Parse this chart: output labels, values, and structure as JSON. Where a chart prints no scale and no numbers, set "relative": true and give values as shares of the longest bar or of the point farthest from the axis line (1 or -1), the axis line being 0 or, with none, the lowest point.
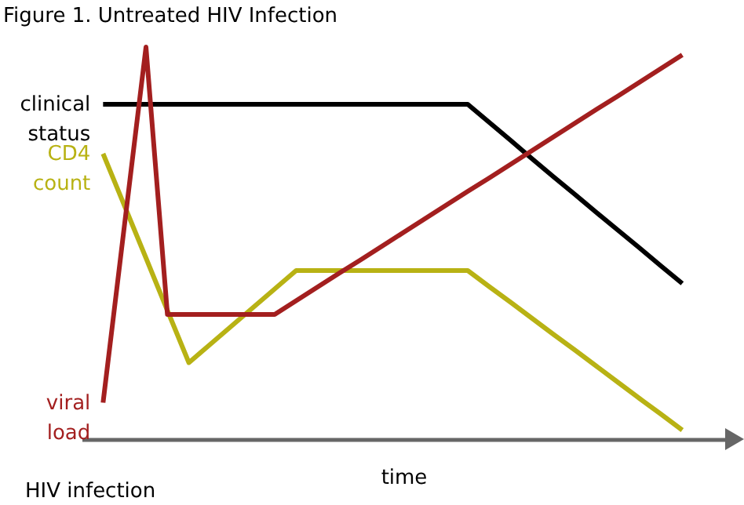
{
  "chart_data": {
    "type": "line",
    "title": "Figure 1. Untreated HIV Infection",
    "xlabel": "time",
    "annotations": [
      "HIV infection"
    ],
    "relative": true,
    "legend": false,
    "marker": "none",
    "line_style": "solid",
    "categories": [
      null,
      null,
      null,
      null,
      null,
      null,
      null,
      null,
      null,
      null,
      null,
      null,
      null,
      null,
      null,
      null,
      null,
      null,
      null,
      null,
      null,
      null,
      null,
      null,
      null,
      null,
      null,
      null,
      null,
      null,
      null
    ],
    "series": [
      {
        "name": "clinical status",
        "color": "#000000",
        "values": [
          null,
          0.854,
          0.854,
          0.854,
          0.854,
          0.854,
          0.854,
          0.854,
          0.854,
          0.854,
          0.854,
          0.854,
          0.854,
          0.854,
          0.854,
          0.854,
          0.854,
          0.854,
          0.854,
          0.808,
          0.762,
          0.715,
          0.669,
          0.624,
          0.578,
          0.533,
          0.488,
          0.442,
          0.397,
          null,
          null
        ]
      },
      {
        "name": "CD4 count",
        "color": "#b8b214",
        "values": [
          null,
          0.728,
          0.595,
          0.462,
          0.328,
          0.195,
          0.242,
          0.289,
          0.336,
          0.383,
          0.43,
          0.43,
          0.43,
          0.43,
          0.43,
          0.43,
          0.43,
          0.43,
          0.43,
          0.389,
          0.349,
          0.308,
          0.267,
          0.227,
          0.186,
          0.145,
          0.104,
          0.064,
          0.023,
          null,
          null
        ]
      },
      {
        "name": "viral load",
        "color": "#a31f1f",
        "values": [
          null,
          0.093,
          0.547,
          1,
          0.318,
          0.318,
          0.318,
          0.318,
          0.318,
          0.318,
          0.353,
          0.388,
          0.423,
          0.457,
          0.492,
          0.527,
          0.562,
          0.597,
          0.632,
          0.666,
          0.701,
          0.736,
          0.771,
          0.806,
          0.841,
          0.875,
          0.91,
          0.945,
          0.98,
          null,
          null
        ]
      }
    ]
  }
}
